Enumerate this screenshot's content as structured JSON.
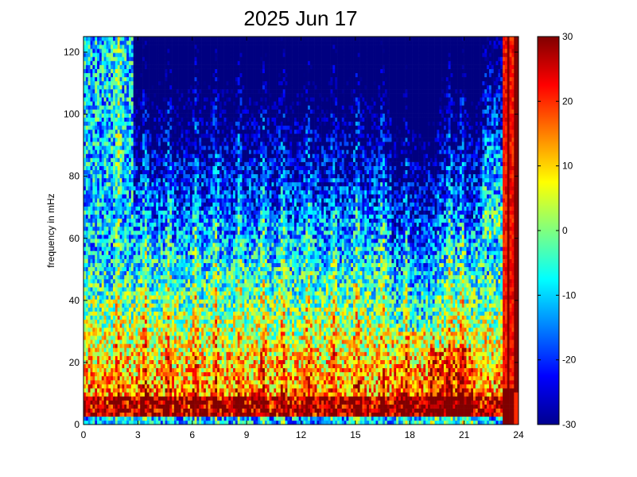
{
  "chart_data": {
    "type": "heatmap",
    "title": "2025 Jun 17",
    "xlabel": "",
    "ylabel": "frequency in mHz",
    "xlim": [
      0,
      24
    ],
    "ylim": [
      0,
      125
    ],
    "x_ticks": [
      0,
      3,
      6,
      9,
      12,
      15,
      18,
      21,
      24
    ],
    "x_tick_labels": [
      "0",
      "3",
      "6",
      "9",
      "12",
      "15",
      "18",
      "21",
      "24"
    ],
    "y_ticks": [
      0,
      20,
      40,
      60,
      80,
      100,
      120
    ],
    "y_tick_labels": [
      "0",
      "20",
      "40",
      "60",
      "80",
      "100",
      "120"
    ],
    "colorbar": {
      "limits": [
        -30,
        30
      ],
      "ticks": [
        -30,
        -20,
        -10,
        0,
        10,
        20,
        30
      ],
      "tick_labels": [
        "-30",
        "-20",
        "-10",
        "0",
        "10",
        "20",
        "30"
      ],
      "colormap": "jet"
    },
    "grid": false
  }
}
